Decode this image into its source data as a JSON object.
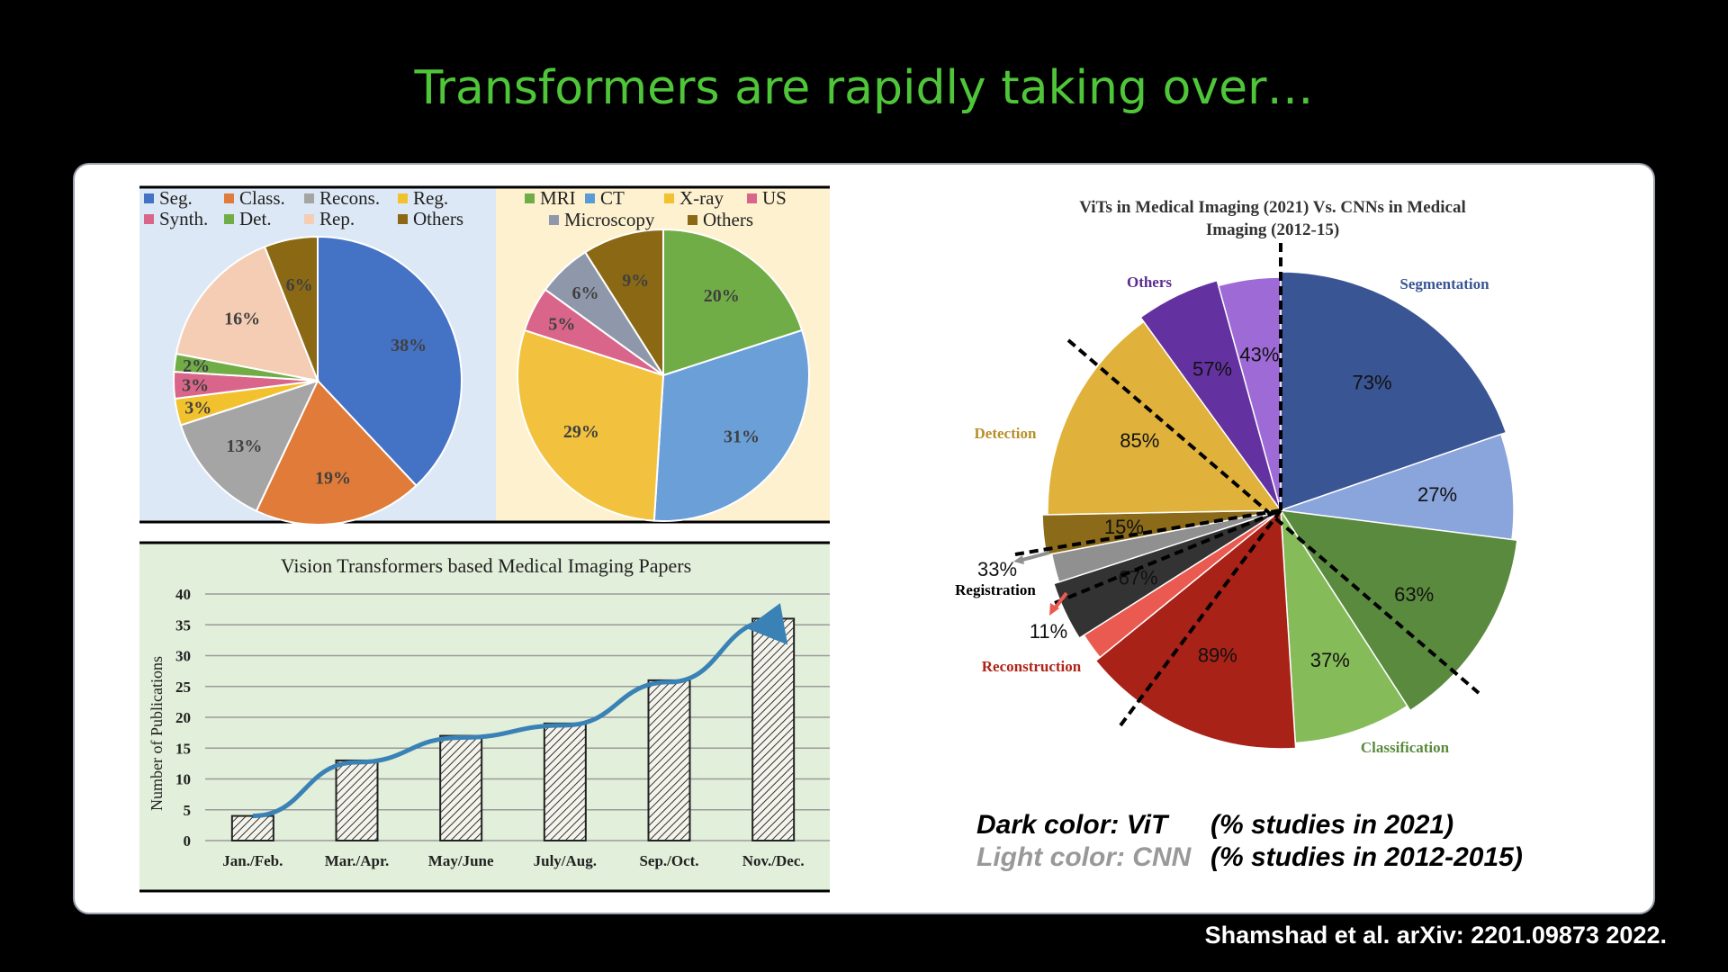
{
  "slide": {
    "title": "Transformers are rapidly taking over…",
    "citation": "Shamshad et al. arXiv: 2201.09873 2022."
  },
  "chart_data": [
    {
      "type": "pie",
      "title": "",
      "legend_placement": "top",
      "labels": [
        "Seg.",
        "Class.",
        "Recons.",
        "Reg.",
        "Synth.",
        "Det.",
        "Rep.",
        "Others"
      ],
      "values": [
        38,
        19,
        13,
        3,
        3,
        2,
        16,
        6
      ],
      "value_labels": [
        "38%",
        "19%",
        "13%",
        "3%",
        "3%",
        "2%",
        "16%",
        "6%"
      ],
      "colors": [
        "#4472c4",
        "#e07b39",
        "#a5a5a5",
        "#f2c12e",
        "#d9668a",
        "#70ad47",
        "#f4cdb4",
        "#8b6914"
      ],
      "background": "#dce8f5"
    },
    {
      "type": "pie",
      "title": "",
      "legend_placement": "top",
      "labels": [
        "MRI",
        "CT",
        "X-ray",
        "US",
        "Microscopy",
        "Others"
      ],
      "legend_colors": [
        "#70ad47",
        "#5b9bd5",
        "#f2c12e",
        "#d9668a",
        "#8f98aa",
        "#8b6914"
      ],
      "slices": [
        {
          "label": "MRI",
          "value": 20,
          "value_label": "20%",
          "color": "#70ad47"
        },
        {
          "label": "CT",
          "value": 31,
          "value_label": "31%",
          "color": "#6b9fd8"
        },
        {
          "label": "X-ray",
          "value": 29,
          "value_label": "29%",
          "color": "#f2c13e"
        },
        {
          "label": "US",
          "value": 5,
          "value_label": "5%",
          "color": "#d9668a"
        },
        {
          "label": "Microscopy",
          "value": 6,
          "value_label": "6%",
          "color": "#8f98aa"
        },
        {
          "label": "Others",
          "value": 9,
          "value_label": "9%",
          "color": "#8b6914"
        }
      ],
      "background": "#fdf1cf"
    },
    {
      "type": "bar",
      "title": "Vision Transformers based Medical Imaging Papers",
      "xlabel": "",
      "ylabel": "Number of Publications",
      "categories": [
        "Jan./Feb.",
        "Mar./Apr.",
        "May/June",
        "July/Aug.",
        "Sep./Oct.",
        "Nov./Dec."
      ],
      "values": [
        4,
        13,
        17,
        19,
        26,
        36
      ],
      "ylim": [
        0,
        40
      ],
      "yticks": [
        "0",
        "5",
        "10",
        "15",
        "20",
        "25",
        "30",
        "35",
        "40"
      ],
      "grid": true,
      "trend_arrow": true,
      "background": "#e2efda"
    },
    {
      "type": "pie",
      "title": "ViTs in Medical Imaging (2021) Vs.  CNNs in Medical Imaging (2012-15)",
      "slices": [
        {
          "label": "Segmentation",
          "value": 73,
          "value_label": "73%",
          "color": "#3a5594",
          "label_color": "#3a5594"
        },
        {
          "label": "Segmentation",
          "value": 27,
          "value_label": "27%",
          "color": "#8aa4dc"
        },
        {
          "label": "Classification",
          "value": 63,
          "value_label": "63%",
          "color": "#5a8a3e",
          "label_color": "#5a8a3e"
        },
        {
          "label": "Classification",
          "value": 37,
          "value_label": "37%",
          "color": "#86bb5a"
        },
        {
          "label": "Reconstruction",
          "value": 89,
          "value_label": "89%",
          "color": "#a82218",
          "label_color": "#b02418"
        },
        {
          "label": "Reconstruction",
          "value": 11,
          "value_label": "11%",
          "color": "#ea5a50"
        },
        {
          "label": "Registration",
          "value": 67,
          "value_label": "67%",
          "color": "#333333",
          "label_color": "#000000"
        },
        {
          "label": "Registration",
          "value": 33,
          "value_label": "33%",
          "color": "#909090"
        },
        {
          "label": "Detection",
          "value": 15,
          "value_label": "15%",
          "color": "#8b6a1a",
          "label_color": "#b8902a"
        },
        {
          "label": "Detection",
          "value": 85,
          "value_label": "85%",
          "color": "#e0b23c"
        },
        {
          "label": "Others",
          "value": 57,
          "value_label": "57%",
          "color": "#6432a0",
          "label_color": "#5b2d8e"
        },
        {
          "label": "Others",
          "value": 43,
          "value_label": "43%",
          "color": "#9e6ad6"
        }
      ],
      "category_labels": [
        "Segmentation",
        "Classification",
        "Reconstruction",
        "Registration",
        "Detection",
        "Others"
      ],
      "legend_notes": [
        {
          "key": "Dark color: ViT",
          "desc": "(% studies in 2021)",
          "key_color": "#000000"
        },
        {
          "key": "Light color: CNN",
          "desc": "(% studies in 2012-2015)",
          "key_color": "#999999"
        }
      ]
    }
  ]
}
